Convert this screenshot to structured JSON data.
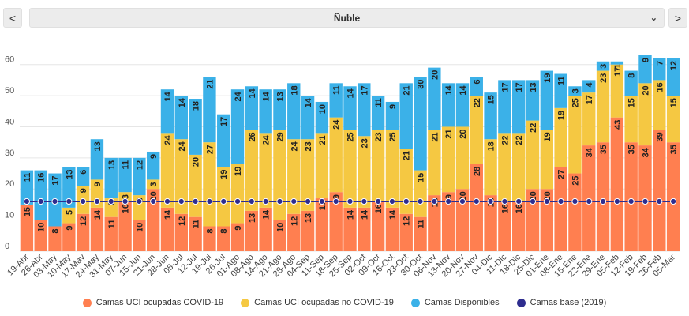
{
  "header": {
    "prev_icon": "chevron-left-icon",
    "prev_label": "<",
    "next_icon": "chevron-right-icon",
    "next_label": ">",
    "selector": {
      "selected": "Ñuble",
      "icon": "chevron-down-icon",
      "chevron": "⌄"
    }
  },
  "colors": {
    "covid": "#FF7F50",
    "noncovid": "#F5C842",
    "disponibles": "#3BB1E8",
    "base": "#2E2D8F",
    "grid": "#e6e6e6",
    "bar_text": "#222222"
  },
  "chart_data": {
    "type": "bar",
    "stacked": true,
    "title": "",
    "xlabel": "",
    "ylabel": "",
    "ylim": [
      0,
      65
    ],
    "yticks": [
      0,
      10,
      20,
      30,
      40,
      50,
      60
    ],
    "categories": [
      "19-Abr",
      "26-Abr",
      "03-May",
      "10-May",
      "17-May",
      "24-May",
      "31-May",
      "07-Jun",
      "15-Jun",
      "21-Jun",
      "28-Jun",
      "05-Jul",
      "12-Jul",
      "19-Jul",
      "26-Jul",
      "01-Ago",
      "08-Ago",
      "14-Ago",
      "21-Ago",
      "28-Ago",
      "04-Sep",
      "11-Sep",
      "18-Sep",
      "25-Sep",
      "02-Oct",
      "09-Oct",
      "16-Oct",
      "23-Oct",
      "30-Oct",
      "06-Nov",
      "13-Nov",
      "20-Nov",
      "27-Nov",
      "04-Dic",
      "11-Dic",
      "18-Dic",
      "25-Dic",
      "01-Ene",
      "08-Ene",
      "15-Ene",
      "22-Ene",
      "29-Ene",
      "05-Feb",
      "12-Feb",
      "19-Feb",
      "26-Feb",
      "05-Mar"
    ],
    "series": [
      {
        "name": "Camas UCI ocupadas COVID-19",
        "key": "covid",
        "values": [
          15,
          10,
          8,
          9,
          12,
          14,
          11,
          16,
          10,
          20,
          14,
          12,
          11,
          8,
          8,
          9,
          13,
          14,
          10,
          12,
          13,
          17,
          19,
          14,
          14,
          16,
          14,
          12,
          11,
          18,
          19,
          20,
          28,
          18,
          16,
          16,
          20,
          20,
          27,
          25,
          34,
          35,
          43,
          35,
          34,
          39,
          35
        ]
      },
      {
        "name": "Camas UCI ocupadas no COVID-19",
        "key": "noncovid",
        "values": [
          null,
          null,
          null,
          5,
          9,
          9,
          6,
          3,
          8,
          3,
          24,
          24,
          20,
          27,
          19,
          19,
          26,
          24,
          29,
          24,
          23,
          21,
          24,
          25,
          23,
          23,
          25,
          21,
          15,
          21,
          21,
          20,
          22,
          18,
          22,
          22,
          22,
          19,
          19,
          25,
          17,
          23,
          17,
          15,
          20,
          16,
          15
        ]
      },
      {
        "name": "Camas Disponibles",
        "key": "disponibles",
        "values": [
          11,
          16,
          17,
          13,
          6,
          13,
          13,
          11,
          12,
          9,
          14,
          14,
          18,
          21,
          17,
          24,
          14,
          14,
          13,
          18,
          14,
          10,
          11,
          14,
          17,
          11,
          9,
          21,
          30,
          20,
          14,
          14,
          6,
          15,
          17,
          17,
          13,
          19,
          11,
          3,
          4,
          3,
          1,
          8,
          9,
          7,
          12
        ]
      },
      {
        "name": "Camas base (2019)",
        "key": "base",
        "type": "line",
        "values": [
          16,
          16,
          16,
          16,
          16,
          16,
          16,
          16,
          16,
          16,
          16,
          16,
          16,
          16,
          16,
          16,
          16,
          16,
          16,
          16,
          16,
          16,
          16,
          16,
          16,
          16,
          16,
          16,
          16,
          16,
          16,
          16,
          16,
          16,
          16,
          16,
          16,
          16,
          16,
          16,
          16,
          16,
          16,
          16,
          16,
          16,
          16
        ]
      }
    ],
    "legend_position": "bottom"
  }
}
